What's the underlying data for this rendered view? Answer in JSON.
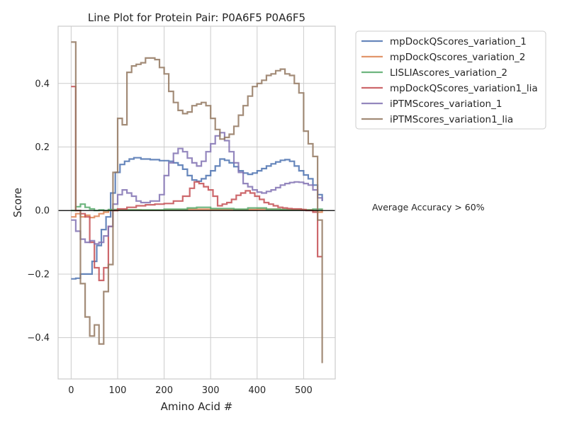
{
  "chart_data": {
    "type": "line",
    "title": "Line Plot for Protein Pair: P0A6F5 P0A6F5",
    "xlabel": "Amino Acid #",
    "ylabel": "Score",
    "xlim": [
      -28,
      568
    ],
    "ylim": [
      -0.53,
      0.58
    ],
    "xticks": [
      0,
      100,
      200,
      300,
      400,
      500
    ],
    "yticks": [
      -0.4,
      -0.2,
      0.0,
      0.2,
      0.4
    ],
    "ytick_labels": [
      "−0.4",
      "−0.2",
      "0.0",
      "0.2",
      "0.4"
    ],
    "grid": true,
    "legend_position": "outside-right-top",
    "hline": {
      "y": 0.0,
      "color": "#000000"
    },
    "annotation": "Average Accuracy > 60%",
    "series": [
      {
        "name": "mpDockQScores_variation_1",
        "color": "#4c72b0",
        "x": [
          0,
          10,
          20,
          35,
          45,
          55,
          65,
          75,
          85,
          95,
          105,
          115,
          125,
          135,
          150,
          170,
          190,
          210,
          220,
          230,
          240,
          250,
          260,
          270,
          280,
          290,
          300,
          310,
          320,
          330,
          340,
          350,
          360,
          370,
          380,
          390,
          400,
          410,
          420,
          430,
          440,
          450,
          460,
          470,
          480,
          490,
          500,
          510,
          520,
          530,
          540
        ],
        "y": [
          -0.215,
          -0.213,
          -0.2,
          -0.2,
          -0.16,
          -0.11,
          -0.06,
          -0.02,
          0.055,
          0.12,
          0.145,
          0.155,
          0.162,
          0.166,
          0.162,
          0.16,
          0.157,
          0.155,
          0.15,
          0.143,
          0.13,
          0.11,
          0.096,
          0.092,
          0.1,
          0.11,
          0.125,
          0.14,
          0.162,
          0.158,
          0.15,
          0.138,
          0.125,
          0.118,
          0.114,
          0.118,
          0.125,
          0.132,
          0.14,
          0.147,
          0.153,
          0.158,
          0.16,
          0.155,
          0.14,
          0.125,
          0.112,
          0.1,
          0.08,
          0.05,
          0.03
        ]
      },
      {
        "name": "mpDockQscores_variation_2",
        "color": "#dd8452",
        "x": [
          0,
          10,
          20,
          30,
          40,
          50,
          60,
          70,
          80,
          100,
          150,
          200,
          250,
          300,
          350,
          400,
          450,
          500,
          520,
          530,
          540
        ],
        "y": [
          -0.02,
          -0.01,
          -0.02,
          -0.015,
          -0.022,
          -0.018,
          -0.01,
          -0.005,
          0.0,
          0.002,
          0.001,
          0.002,
          0.004,
          0.003,
          0.003,
          0.004,
          0.003,
          0.002,
          0.0,
          -0.005,
          0.002
        ]
      },
      {
        "name": "LISLIAscores_variation_2",
        "color": "#55a868",
        "x": [
          0,
          10,
          20,
          30,
          40,
          50,
          60,
          70,
          80,
          100,
          150,
          200,
          250,
          270,
          300,
          350,
          380,
          420,
          450,
          500,
          520,
          540
        ],
        "y": [
          0.0,
          0.012,
          0.02,
          0.01,
          0.005,
          0.0,
          0.002,
          0.0,
          0.003,
          0.002,
          0.002,
          0.004,
          0.008,
          0.01,
          0.006,
          0.004,
          0.008,
          0.004,
          0.003,
          0.002,
          0.004,
          0.002
        ]
      },
      {
        "name": "mpDockQScores_variation1_lia",
        "color": "#c44e52",
        "x": [
          0,
          10,
          20,
          30,
          40,
          50,
          60,
          70,
          80,
          90,
          100,
          120,
          140,
          160,
          180,
          200,
          220,
          240,
          255,
          265,
          275,
          285,
          295,
          305,
          315,
          325,
          335,
          345,
          355,
          365,
          375,
          385,
          395,
          405,
          415,
          425,
          435,
          445,
          455,
          465,
          475,
          485,
          495,
          505,
          520,
          530,
          540
        ],
        "y": [
          0.39,
          0.0,
          -0.01,
          -0.02,
          -0.1,
          -0.18,
          -0.22,
          -0.18,
          -0.05,
          0.0,
          0.005,
          0.01,
          0.015,
          0.018,
          0.02,
          0.022,
          0.03,
          0.045,
          0.07,
          0.09,
          0.085,
          0.075,
          0.065,
          0.045,
          0.015,
          0.02,
          0.025,
          0.035,
          0.048,
          0.055,
          0.062,
          0.055,
          0.045,
          0.035,
          0.025,
          0.02,
          0.015,
          0.01,
          0.008,
          0.006,
          0.005,
          0.005,
          0.003,
          0.0,
          -0.005,
          -0.145,
          -0.145
        ]
      },
      {
        "name": "iPTMScores_variation_1",
        "color": "#8172b3",
        "x": [
          0,
          10,
          20,
          30,
          40,
          50,
          60,
          70,
          80,
          90,
          100,
          110,
          120,
          130,
          140,
          150,
          170,
          190,
          200,
          210,
          220,
          230,
          240,
          250,
          260,
          270,
          280,
          290,
          300,
          310,
          320,
          330,
          340,
          350,
          360,
          370,
          380,
          390,
          400,
          410,
          420,
          430,
          440,
          450,
          460,
          470,
          480,
          490,
          500,
          510,
          520,
          530,
          540
        ],
        "y": [
          -0.03,
          -0.065,
          -0.09,
          -0.1,
          -0.095,
          -0.105,
          -0.1,
          -0.08,
          -0.05,
          0.02,
          0.05,
          0.065,
          0.055,
          0.045,
          0.03,
          0.025,
          0.03,
          0.05,
          0.11,
          0.15,
          0.18,
          0.195,
          0.185,
          0.165,
          0.15,
          0.14,
          0.155,
          0.185,
          0.21,
          0.235,
          0.245,
          0.22,
          0.185,
          0.15,
          0.12,
          0.085,
          0.075,
          0.065,
          0.058,
          0.055,
          0.06,
          0.065,
          0.072,
          0.08,
          0.085,
          0.088,
          0.09,
          0.089,
          0.085,
          0.08,
          0.065,
          0.04,
          0.03
        ]
      },
      {
        "name": "iPTMScores_variation1_lia",
        "color": "#937860",
        "x": [
          0,
          10,
          20,
          30,
          40,
          50,
          60,
          70,
          80,
          90,
          100,
          110,
          120,
          130,
          140,
          150,
          160,
          170,
          180,
          190,
          200,
          210,
          220,
          230,
          240,
          250,
          260,
          270,
          280,
          290,
          300,
          310,
          320,
          330,
          340,
          350,
          360,
          370,
          380,
          390,
          400,
          410,
          420,
          430,
          440,
          450,
          460,
          470,
          480,
          490,
          500,
          510,
          520,
          530,
          540
        ],
        "y": [
          0.53,
          0.0,
          -0.23,
          -0.335,
          -0.395,
          -0.36,
          -0.42,
          -0.255,
          -0.17,
          0.12,
          0.29,
          0.27,
          0.435,
          0.455,
          0.46,
          0.465,
          0.48,
          0.48,
          0.475,
          0.45,
          0.43,
          0.375,
          0.34,
          0.315,
          0.305,
          0.31,
          0.33,
          0.335,
          0.34,
          0.33,
          0.29,
          0.255,
          0.225,
          0.23,
          0.24,
          0.265,
          0.3,
          0.33,
          0.36,
          0.39,
          0.4,
          0.41,
          0.425,
          0.43,
          0.44,
          0.445,
          0.43,
          0.425,
          0.4,
          0.37,
          0.25,
          0.21,
          0.17,
          -0.03,
          -0.48
        ]
      }
    ]
  }
}
